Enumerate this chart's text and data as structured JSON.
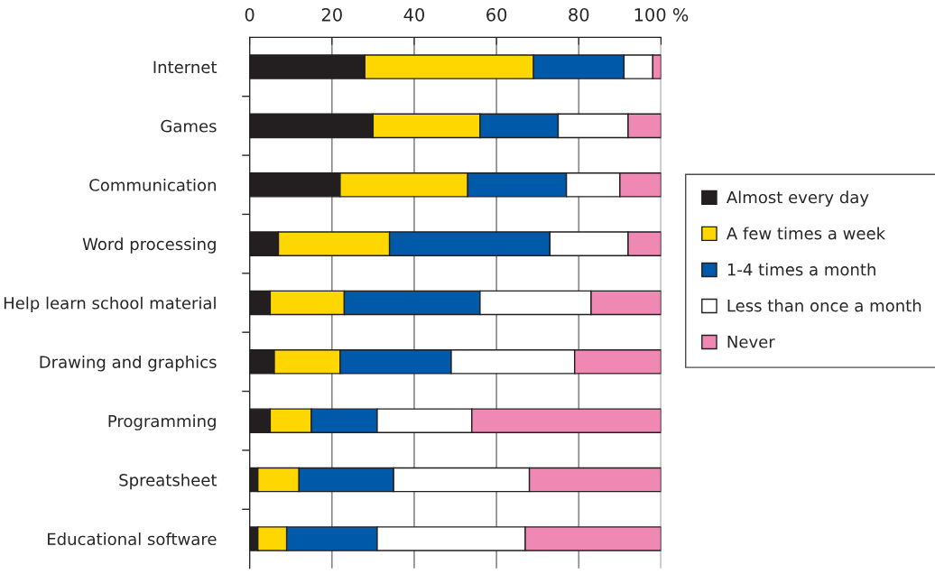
{
  "chart_data": {
    "type": "bar",
    "orientation": "horizontal",
    "stacked": true,
    "categories": [
      "Internet",
      "Games",
      "Communication",
      "Word processing",
      "Help learn school material",
      "Drawing and graphics",
      "Programming",
      "Spreatsheet",
      "Educational software"
    ],
    "series": [
      {
        "name": "Almost every day",
        "color": "#231f20",
        "values": [
          28,
          30,
          22,
          7,
          5,
          6,
          5,
          2,
          2
        ]
      },
      {
        "name": "A few times a week",
        "color": "#ffd700",
        "values": [
          41,
          26,
          31,
          27,
          18,
          16,
          10,
          10,
          7
        ]
      },
      {
        "name": "1-4 times a month",
        "color": "#005aa9",
        "values": [
          22,
          19,
          24,
          39,
          33,
          27,
          16,
          23,
          22
        ]
      },
      {
        "name": "Less than once a month",
        "color": "#ffffff",
        "values": [
          7,
          17,
          13,
          19,
          27,
          30,
          23,
          33,
          36
        ]
      },
      {
        "name": "Never",
        "color": "#f088b4",
        "values": [
          2,
          8,
          10,
          8,
          17,
          21,
          46,
          32,
          33
        ]
      }
    ],
    "xlim": [
      0,
      100
    ],
    "xticks": [
      0,
      20,
      40,
      60,
      80,
      {
        "value": 100,
        "label": "100 %"
      }
    ],
    "grid": "x",
    "legend": "right"
  }
}
